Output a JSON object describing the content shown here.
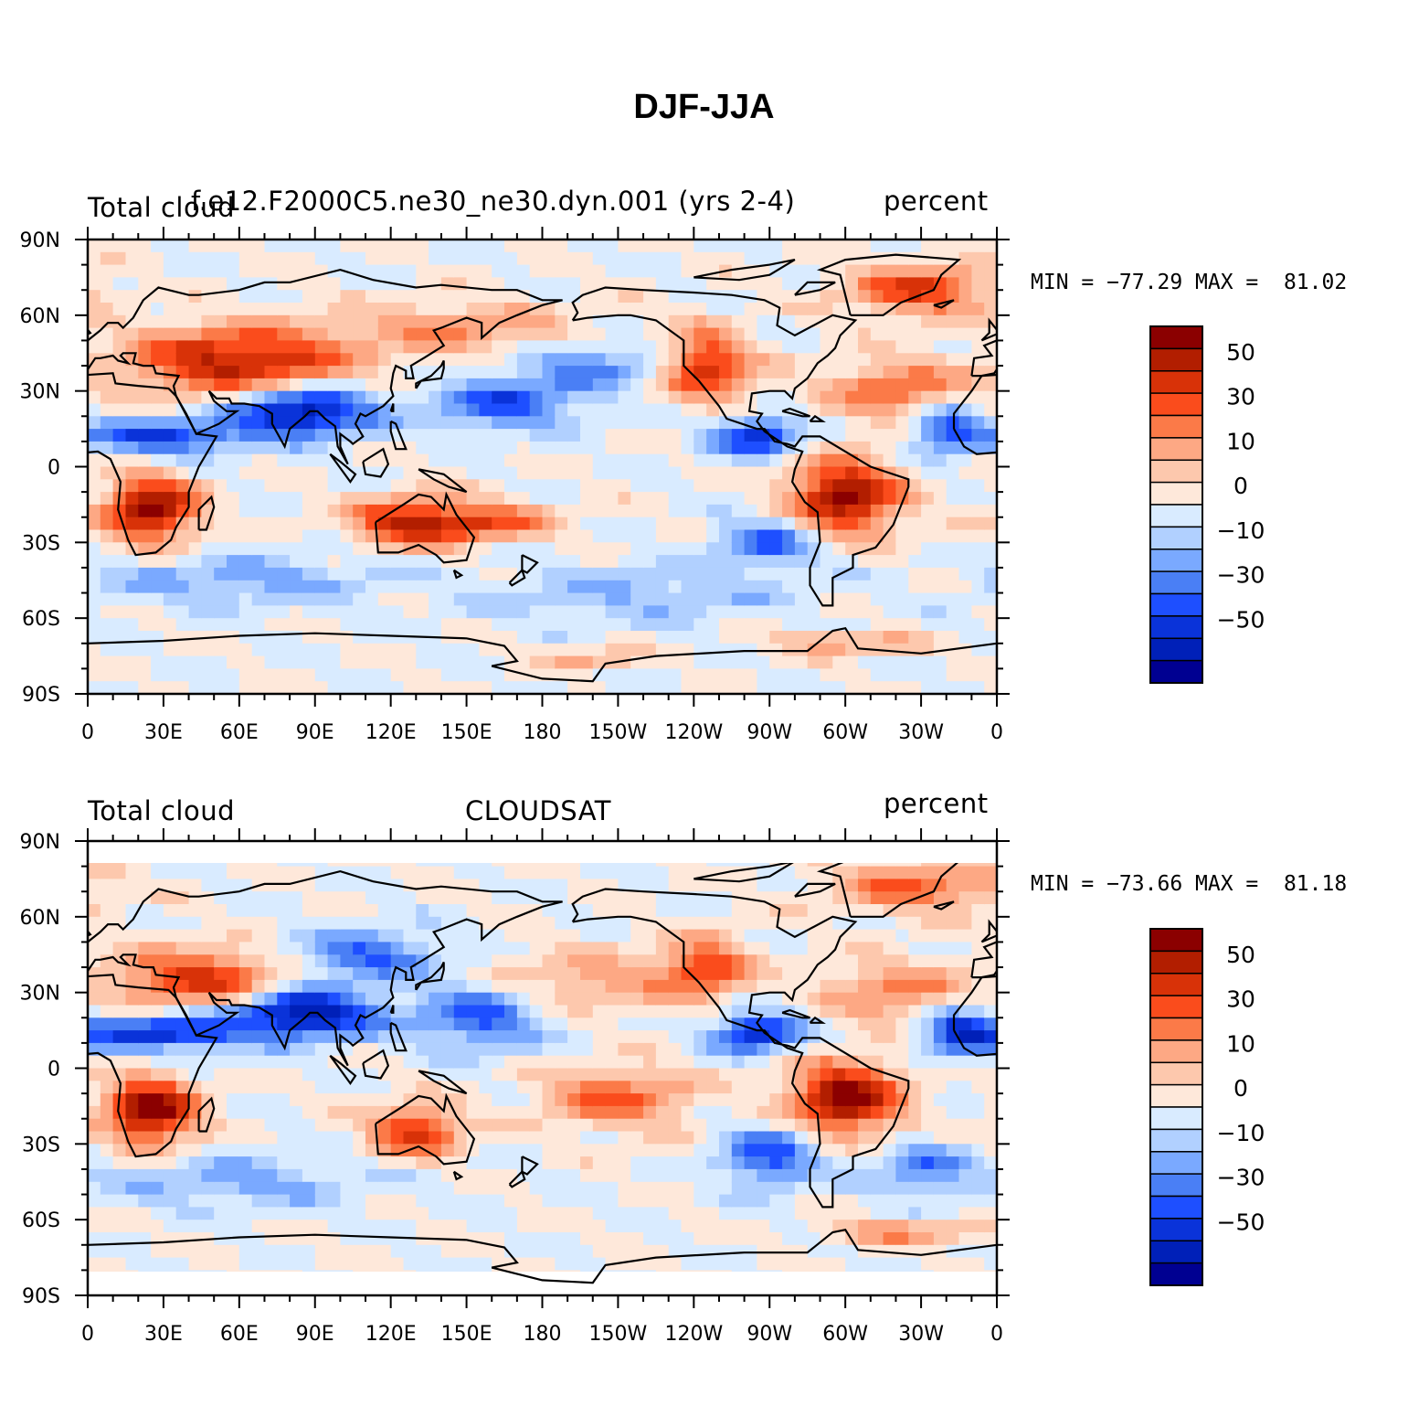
{
  "title": "DJF-JJA",
  "panels": [
    {
      "left_label": "Total cloud",
      "center_label": "f.e12.F2000C5.ne30_ne30.dyn.001 (yrs 2-4)",
      "right_label": "percent",
      "stats": "MIN = −77.29 MAX =  81.02"
    },
    {
      "left_label": "Total cloud",
      "center_label": "CLOUDSAT",
      "right_label": "percent",
      "stats": "MIN = −73.66 MAX =  81.18"
    }
  ],
  "axes": {
    "lon_ticks": [
      "0",
      "30E",
      "60E",
      "90E",
      "120E",
      "150E",
      "180",
      "150W",
      "120W",
      "90W",
      "60W",
      "30W",
      "0"
    ],
    "lat_ticks": [
      "90N",
      "60N",
      "30N",
      "0",
      "30S",
      "60S",
      "90S"
    ]
  },
  "colorbar": {
    "labels": [
      "50",
      "30",
      "10",
      "0",
      "−10",
      "−30",
      "−50"
    ],
    "colors": [
      "#8b0000",
      "#b21e00",
      "#d83208",
      "#fa4c1c",
      "#fb7a48",
      "#fda884",
      "#fdc8ad",
      "#fee8da",
      "#d9ebff",
      "#b1d0ff",
      "#7aa9ff",
      "#4a7ff5",
      "#1e4fff",
      "#0a33d9",
      "#0020b8",
      "#000091"
    ]
  },
  "colors": {
    "ocean_background": "#d9ebff",
    "coastline": "#000000"
  }
}
